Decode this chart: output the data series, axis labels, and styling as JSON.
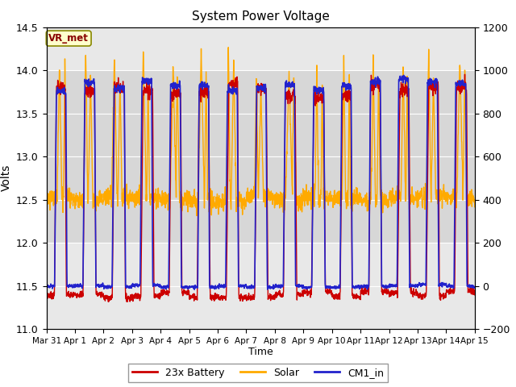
{
  "title": "System Power Voltage",
  "xlabel": "Time",
  "ylabel": "Volts",
  "ylim_left": [
    11.0,
    14.5
  ],
  "ylim_right": [
    -200,
    1200
  ],
  "yticks_left": [
    11.0,
    11.5,
    12.0,
    12.5,
    13.0,
    13.5,
    14.0,
    14.5
  ],
  "yticks_right": [
    -200,
    0,
    200,
    400,
    600,
    800,
    1000,
    1200
  ],
  "annotation_text": "VR_met",
  "annotation_box_color": "#ffffcc",
  "annotation_box_edge": "#888800",
  "annotation_text_color": "#880000",
  "line_colors": {
    "battery": "#cc0000",
    "solar": "#ffaa00",
    "cm1": "#2222cc"
  },
  "line_widths": {
    "battery": 1.0,
    "solar": 1.0,
    "cm1": 1.2
  },
  "legend_labels": [
    "23x Battery",
    "Solar",
    "CM1_in"
  ],
  "tick_labels": [
    "Mar 31",
    "Apr 1",
    "Apr 2",
    "Apr 3",
    "Apr 4",
    "Apr 5",
    "Apr 6",
    "Apr 7",
    "Apr 8",
    "Apr 9",
    "Apr 10",
    "Apr 11",
    "Apr 12",
    "Apr 13",
    "Apr 14",
    "Apr 15"
  ],
  "figsize": [
    6.4,
    4.8
  ],
  "dpi": 100,
  "bg_color": "#ffffff",
  "plot_bg_color": "#e8e8e8",
  "grid_color": "#ffffff",
  "band_color": "#d8d8d8",
  "seed": 7
}
